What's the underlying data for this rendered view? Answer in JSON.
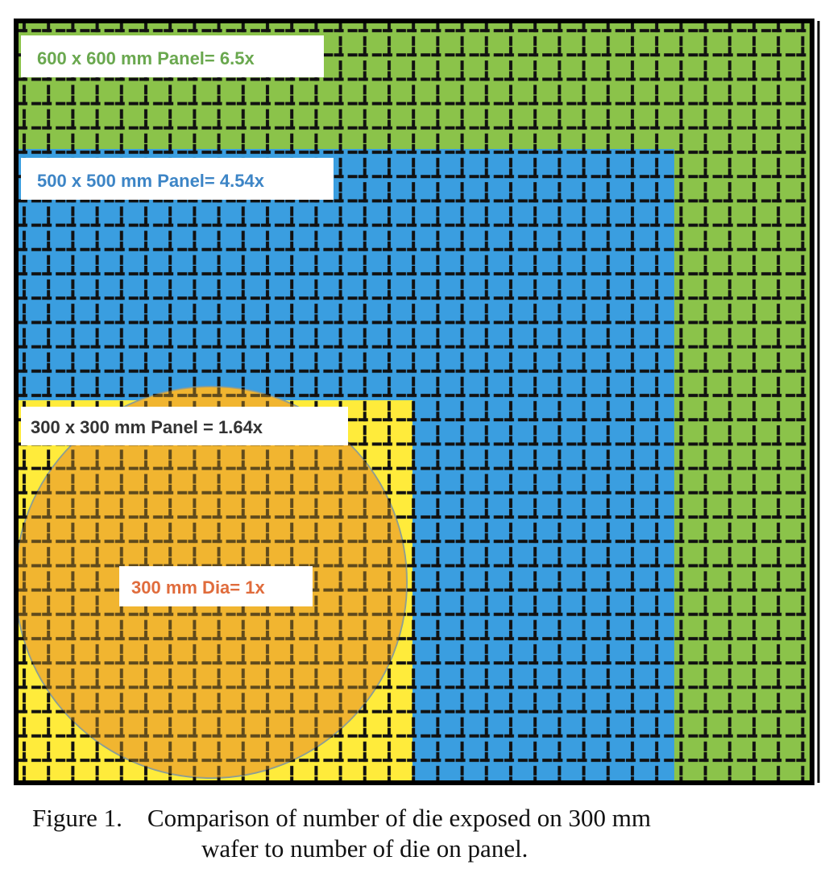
{
  "figure": {
    "labels": {
      "panel_600": "600 x 600 mm Panel= 6.5x",
      "panel_500": "500 x 500 mm Panel= 4.54x",
      "panel_300": "300 x 300 mm Panel = 1.64x",
      "wafer_300": "300 mm Dia= 1x"
    },
    "colors": {
      "panel_600": "#8bc34a",
      "panel_500": "#3a9ee0",
      "panel_300": "#ffeb3b",
      "wafer": "#f2b531",
      "grid": "#111111",
      "label_600_text": "#6aa84f",
      "label_500_text": "#3d85c6",
      "label_300_text": "#333333",
      "wafer_text": "#e06c3c"
    },
    "caption": {
      "line1": "Figure 1.    Comparison of number of die exposed on 300 mm",
      "line2": "wafer to number of die on panel."
    }
  }
}
